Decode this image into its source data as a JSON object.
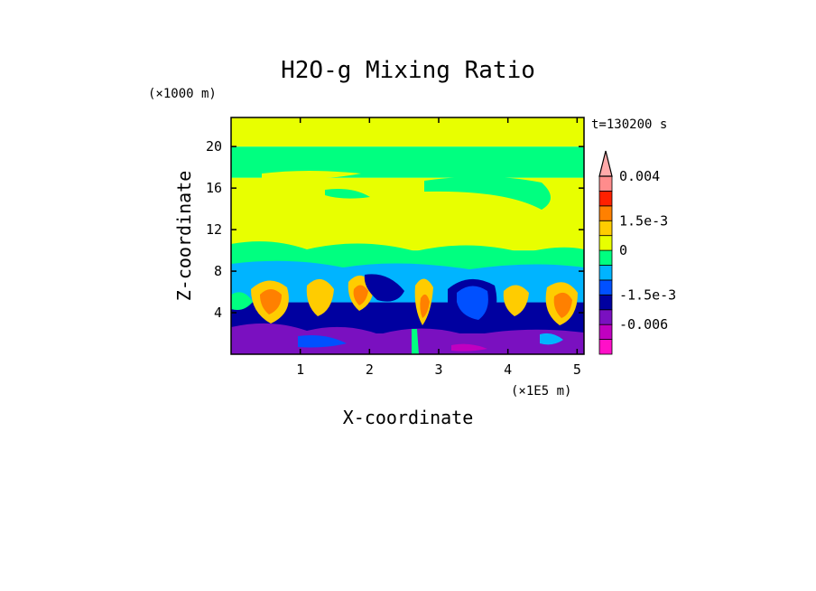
{
  "chart_data": {
    "type": "heatmap",
    "title": "H2O-g Mixing Ratio",
    "xlabel": "X-coordinate",
    "ylabel": "Z-coordinate",
    "x_unit": "(×1E5 m)",
    "y_unit": "(×1000 m)",
    "time_label": "t=130200 s",
    "xlim": [
      0,
      5.1
    ],
    "ylim": [
      0,
      22.8
    ],
    "x_ticks": [
      {
        "value": 1,
        "label": "1"
      },
      {
        "value": 2,
        "label": "2"
      },
      {
        "value": 3,
        "label": "3"
      },
      {
        "value": 4,
        "label": "4"
      },
      {
        "value": 5,
        "label": "5"
      }
    ],
    "y_ticks": [
      {
        "value": 4,
        "label": "4"
      },
      {
        "value": 8,
        "label": "8"
      },
      {
        "value": 12,
        "label": "12"
      },
      {
        "value": 16,
        "label": "16"
      },
      {
        "value": 20,
        "label": "20"
      }
    ],
    "colorbar": {
      "colors": [
        "#ff10c8",
        "#c000c0",
        "#7a10c0",
        "#0000a0",
        "#0050ff",
        "#00b4ff",
        "#00ff80",
        "#e8ff00",
        "#ffcc00",
        "#ff8000",
        "#ff2000",
        "#ff8c8c",
        "#ffaaaa"
      ],
      "labels": [
        {
          "text": "0.004",
          "level": 12
        },
        {
          "text": "1.5e-3",
          "level": 9
        },
        {
          "text": "0",
          "level": 7
        },
        {
          "text": "-1.5e-3",
          "level": 4
        },
        {
          "text": "-0.006",
          "level": 2
        }
      ]
    },
    "field_bands": [
      {
        "z_range": [
          0,
          2
        ],
        "color": "#7a10c0"
      },
      {
        "z_range": [
          2,
          5
        ],
        "color": "#0000a0"
      },
      {
        "z_range": [
          5,
          7
        ],
        "color": "#00b4ff"
      },
      {
        "z_range": [
          7,
          10
        ],
        "color": "#00ff80"
      },
      {
        "z_range": [
          10,
          17
        ],
        "color": "#e8ff00"
      },
      {
        "z_range": [
          17,
          20
        ],
        "color": "#00ff80"
      },
      {
        "z_range": [
          20,
          22.8
        ],
        "color": "#e8ff00"
      }
    ]
  }
}
